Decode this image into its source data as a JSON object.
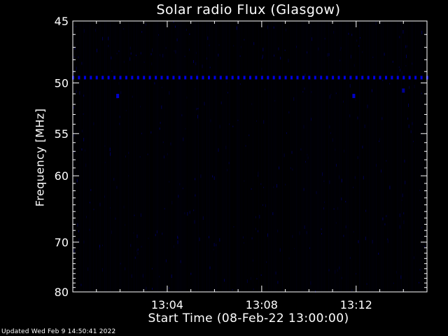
{
  "chart_data": {
    "type": "heatmap",
    "title": "Solar radio Flux (Glasgow)",
    "xlabel": "Start Time (08-Feb-22 13:00:00)",
    "ylabel": "Frequency [MHz]",
    "x_ticks": [
      "13:04",
      "13:08",
      "13:12"
    ],
    "x_tick_minutes": [
      4,
      8,
      12
    ],
    "xlim_minutes": [
      0,
      15
    ],
    "y_ticks": [
      45,
      50,
      55,
      60,
      70,
      80
    ],
    "ylim": [
      45,
      80
    ],
    "y_scale": "reciprocal",
    "colormap": [
      "#000000",
      "#00003a",
      "#0000ff"
    ],
    "features": [
      {
        "label": "persistent interference line",
        "frequency": 49.5,
        "time_minutes": [
          0,
          15
        ],
        "intensity": 0.9
      },
      {
        "label": "bright spot",
        "frequency": 51.2,
        "time_minutes": 1.9,
        "intensity": 0.8
      },
      {
        "label": "bright spot",
        "frequency": 51.2,
        "time_minutes": 11.9,
        "intensity": 0.8
      },
      {
        "label": "bright spot",
        "frequency": 50.7,
        "time_minutes": 14.0,
        "intensity": 0.6
      }
    ],
    "grid": false
  },
  "footer": "Updated Wed Feb  9 14:50:41 2022"
}
